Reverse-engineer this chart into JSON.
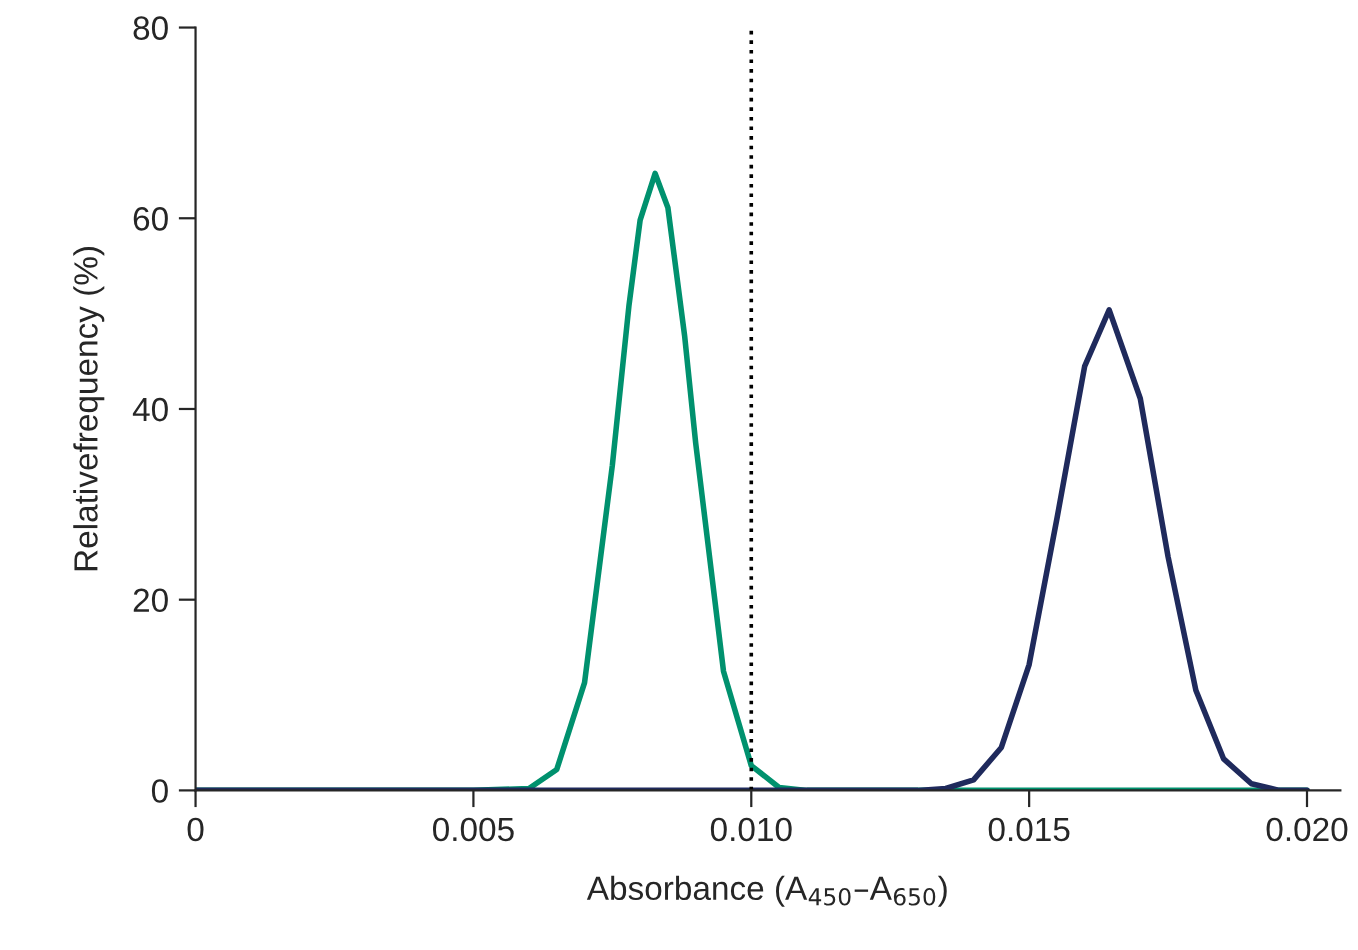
{
  "chart_data": {
    "type": "line",
    "xlabel": "Absorbance (A$_{450}$–A$_{650}$)",
    "ylabel": "Relativefrequency (%)",
    "series": [
      {
        "color": "#00916e",
        "x": [
          0,
          0.005,
          0.006,
          0.0065,
          0.007,
          0.0075,
          0.0078,
          0.008,
          0.00827,
          0.0085,
          0.0088,
          0.009,
          0.0095,
          0.01,
          0.0105,
          0.011,
          0.02
        ],
        "values": [
          0,
          0,
          0.2,
          2.2,
          11.3,
          34.1,
          50.9,
          59.8,
          64.7,
          61.1,
          47.7,
          36.4,
          12.5,
          2.6,
          0.3,
          0,
          0
        ]
      },
      {
        "color": "#1f2a5c",
        "x": [
          0,
          0.013,
          0.0135,
          0.014,
          0.0145,
          0.015,
          0.0155,
          0.016,
          0.01644,
          0.017,
          0.0175,
          0.018,
          0.0185,
          0.019,
          0.0195,
          0.02
        ],
        "values": [
          0,
          0,
          0.2,
          1.1,
          4.5,
          13.2,
          28.5,
          44.5,
          50.4,
          41.1,
          24.5,
          10.5,
          3.3,
          0.7,
          0,
          0
        ]
      }
    ],
    "xlim": [
      0,
      0.0206
    ],
    "xticks": [
      {
        "value": 0,
        "label": "0"
      },
      0.005,
      {
        "value": 0.01,
        "label": "0.010"
      },
      0.015,
      {
        "value": 0.02,
        "label": "0.020"
      }
    ],
    "ylim": [
      0,
      80
    ],
    "yticks": [
      0,
      20,
      40,
      60,
      80
    ],
    "ref_lines": [
      {
        "axis": "x",
        "value": 0.01,
        "color": "#000000",
        "line_style": "dotted"
      }
    ],
    "grid": false
  }
}
